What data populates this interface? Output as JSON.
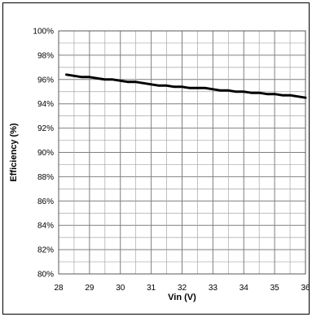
{
  "chart_data": {
    "type": "line",
    "title": "",
    "xlabel": "Vin (V)",
    "ylabel": "Efficiency (%)",
    "xlim": [
      28,
      36
    ],
    "ylim": [
      80,
      100
    ],
    "x_ticks": [
      "28",
      "29",
      "30",
      "31",
      "32",
      "33",
      "34",
      "35",
      "36"
    ],
    "y_ticks": [
      "80%",
      "82%",
      "84%",
      "86%",
      "88%",
      "90%",
      "92%",
      "94%",
      "96%",
      "98%",
      "100%"
    ],
    "grid": true,
    "minor_x_grid_step": 0.5,
    "legend": "none",
    "series": [
      {
        "color": "#000000",
        "x": [
          28.25,
          28.5,
          28.75,
          29.0,
          29.25,
          29.5,
          29.75,
          30.0,
          30.25,
          30.5,
          30.75,
          31.0,
          31.25,
          31.5,
          31.75,
          32.0,
          32.25,
          32.5,
          32.75,
          33.0,
          33.25,
          33.5,
          33.75,
          34.0,
          34.25,
          34.5,
          34.75,
          35.0,
          35.25,
          35.5,
          35.75,
          36.0
        ],
        "y": [
          96.4,
          96.3,
          96.2,
          96.2,
          96.1,
          96.0,
          96.0,
          95.9,
          95.8,
          95.8,
          95.7,
          95.6,
          95.5,
          95.5,
          95.4,
          95.4,
          95.3,
          95.3,
          95.3,
          95.2,
          95.1,
          95.1,
          95.0,
          95.0,
          94.9,
          94.9,
          94.8,
          94.8,
          94.7,
          94.7,
          94.6,
          94.5
        ]
      }
    ]
  }
}
